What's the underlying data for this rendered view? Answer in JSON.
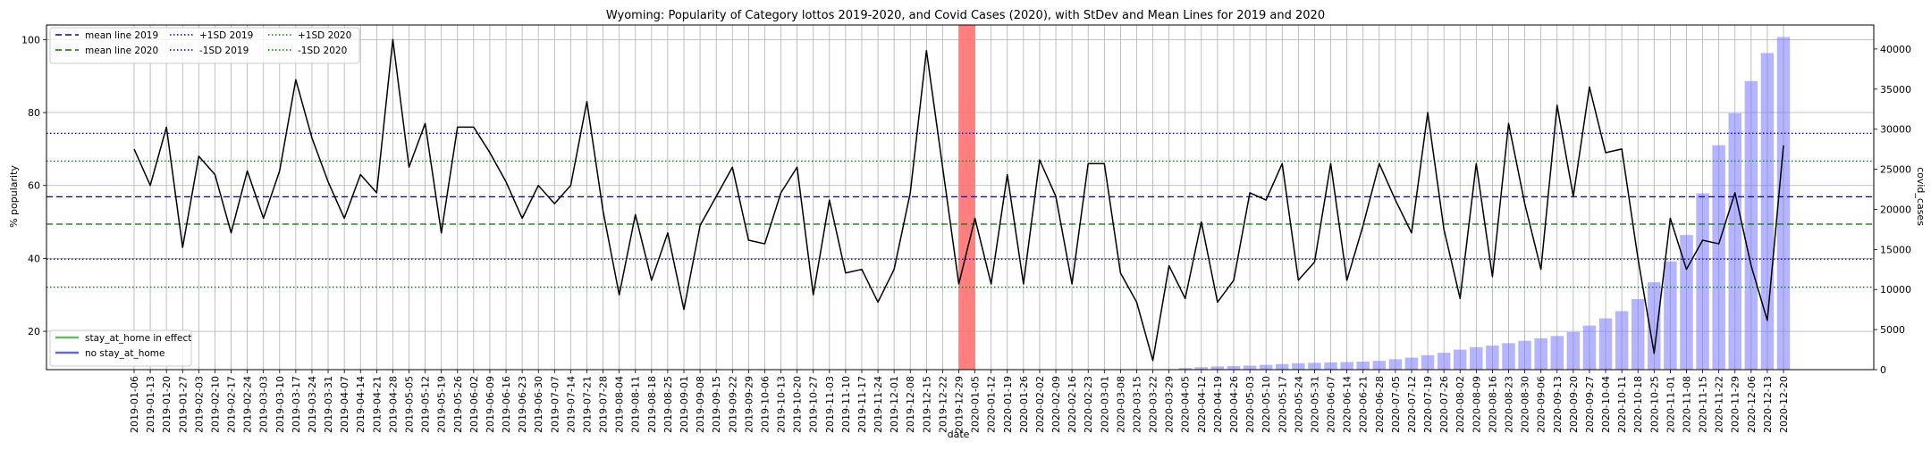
{
  "chart_data": {
    "type": "line",
    "title": "Wyoming: Popularity of Category lottos 2019-2020, and Covid Cases (2020), with StDev and Mean Lines for 2019 and 2020",
    "xlabel": "date",
    "ylabel": "% popularity",
    "y2label": "covid_cases",
    "ylim": [
      9.5,
      104
    ],
    "y2lim": [
      0,
      43000
    ],
    "yticks": [
      20,
      40,
      60,
      80,
      100
    ],
    "y2ticks": [
      0,
      5000,
      10000,
      15000,
      20000,
      25000,
      30000,
      35000,
      40000
    ],
    "grid": true,
    "x": [
      "2019-01-06",
      "2019-01-13",
      "2019-01-20",
      "2019-01-27",
      "2019-02-03",
      "2019-02-10",
      "2019-02-17",
      "2019-02-24",
      "2019-03-03",
      "2019-03-10",
      "2019-03-17",
      "2019-03-24",
      "2019-03-31",
      "2019-04-07",
      "2019-04-14",
      "2019-04-21",
      "2019-04-28",
      "2019-05-05",
      "2019-05-12",
      "2019-05-19",
      "2019-05-26",
      "2019-06-02",
      "2019-06-09",
      "2019-06-16",
      "2019-06-23",
      "2019-06-30",
      "2019-07-07",
      "2019-07-14",
      "2019-07-21",
      "2019-07-28",
      "2019-08-04",
      "2019-08-11",
      "2019-08-18",
      "2019-08-25",
      "2019-09-01",
      "2019-09-08",
      "2019-09-15",
      "2019-09-22",
      "2019-09-29",
      "2019-10-06",
      "2019-10-13",
      "2019-10-20",
      "2019-10-27",
      "2019-11-03",
      "2019-11-10",
      "2019-11-17",
      "2019-11-24",
      "2019-12-01",
      "2019-12-08",
      "2019-12-15",
      "2019-12-22",
      "2019-12-29",
      "2020-01-05",
      "2020-01-12",
      "2020-01-19",
      "2020-01-26",
      "2020-02-02",
      "2020-02-09",
      "2020-02-16",
      "2020-02-23",
      "2020-03-01",
      "2020-03-08",
      "2020-03-15",
      "2020-03-22",
      "2020-03-29",
      "2020-04-05",
      "2020-04-12",
      "2020-04-19",
      "2020-04-26",
      "2020-05-03",
      "2020-05-10",
      "2020-05-17",
      "2020-05-24",
      "2020-05-31",
      "2020-06-07",
      "2020-06-14",
      "2020-06-21",
      "2020-06-28",
      "2020-07-05",
      "2020-07-12",
      "2020-07-19",
      "2020-07-26",
      "2020-08-02",
      "2020-08-09",
      "2020-08-16",
      "2020-08-23",
      "2020-08-30",
      "2020-09-06",
      "2020-09-13",
      "2020-09-20",
      "2020-09-27",
      "2020-10-04",
      "2020-10-11",
      "2020-10-18",
      "2020-10-25",
      "2020-11-01",
      "2020-11-08",
      "2020-11-15",
      "2020-11-22",
      "2020-11-29",
      "2020-12-06",
      "2020-12-13",
      "2020-12-20"
    ],
    "series": [
      {
        "type": "line",
        "color": "#000000",
        "values": [
          70,
          60,
          76,
          43,
          68,
          63,
          47,
          64,
          51,
          64,
          89,
          73,
          61,
          51,
          63,
          58,
          100,
          65,
          77,
          47,
          76,
          76,
          69,
          61,
          51,
          60,
          55,
          60,
          83,
          53,
          30,
          52,
          34,
          47,
          26,
          49,
          57,
          65,
          45,
          44,
          58,
          65,
          30,
          56,
          36,
          37,
          28,
          37,
          58,
          97,
          65,
          33,
          51,
          33,
          63,
          33,
          67,
          57,
          33,
          66,
          66,
          36,
          28,
          12,
          38,
          29,
          50,
          28,
          34,
          58,
          56,
          66,
          34,
          39,
          66,
          34,
          49,
          66,
          56,
          47,
          80,
          48,
          29,
          66,
          35,
          77,
          55,
          37,
          82,
          57,
          87,
          69,
          70,
          40,
          14,
          51,
          37,
          45,
          44,
          58,
          38,
          23,
          71
        ],
        "axis": "left"
      },
      {
        "name": "covid_cases",
        "type": "bar",
        "color": "#7777ff",
        "axis": "right",
        "values": [
          0,
          0,
          0,
          0,
          0,
          0,
          0,
          0,
          0,
          0,
          0,
          0,
          0,
          0,
          0,
          0,
          0,
          0,
          0,
          0,
          0,
          0,
          0,
          0,
          0,
          0,
          0,
          0,
          0,
          0,
          0,
          0,
          0,
          0,
          0,
          0,
          0,
          0,
          0,
          0,
          0,
          0,
          0,
          0,
          0,
          0,
          0,
          0,
          0,
          0,
          0,
          0,
          0,
          0,
          0,
          0,
          0,
          0,
          0,
          0,
          0,
          0,
          0,
          0,
          0,
          200,
          300,
          400,
          450,
          500,
          600,
          700,
          800,
          850,
          900,
          950,
          1000,
          1100,
          1300,
          1500,
          1800,
          2100,
          2500,
          2800,
          3000,
          3300,
          3600,
          3900,
          4200,
          4700,
          5500,
          6400,
          7300,
          8800,
          10900,
          13500,
          16800,
          22000,
          28000,
          32000,
          36000,
          39500,
          41500
        ]
      }
    ],
    "reference_lines": [
      {
        "label": "mean line 2019",
        "y": 56.9,
        "color": "#0000bb",
        "style": "dashed"
      },
      {
        "label": "mean line 2020",
        "y": 49.4,
        "color": "#007700",
        "style": "dashed"
      },
      {
        "label": "+1SD 2019",
        "y": 74.3,
        "color": "#0000ff",
        "style": "dotted"
      },
      {
        "label": "-1SD 2019",
        "y": 39.8,
        "color": "#0000ff",
        "style": "dotted"
      },
      {
        "label": "+1SD 2020",
        "y": 66.7,
        "color": "#008800",
        "style": "dotted"
      },
      {
        "label": "-1SD 2020",
        "y": 32.1,
        "color": "#008800",
        "style": "dotted"
      }
    ],
    "highlight_span": {
      "from": "2019-12-29",
      "to": "2020-01-05",
      "color": "#ff7070"
    },
    "legends": [
      {
        "placement": "top-left",
        "columns": 3,
        "entries": [
          {
            "label": "mean line 2019",
            "color": "#0000bb",
            "style": "dashed"
          },
          {
            "label": "mean line 2020",
            "color": "#007700",
            "style": "dashed"
          },
          {
            "label": "+1SD 2019",
            "color": "#0000ff",
            "style": "dotted"
          },
          {
            "label": "-1SD 2019",
            "color": "#0000ff",
            "style": "dotted"
          },
          {
            "label": "+1SD 2020",
            "color": "#008800",
            "style": "dotted"
          },
          {
            "label": "-1SD 2020",
            "color": "#008800",
            "style": "dotted"
          }
        ]
      },
      {
        "placement": "bottom-left",
        "columns": 1,
        "entries": [
          {
            "label": "stay_at_home in effect",
            "color": "#66bb66",
            "style": "solid"
          },
          {
            "label": "no stay_at_home",
            "color": "#6666dd",
            "style": "solid"
          }
        ]
      }
    ]
  }
}
